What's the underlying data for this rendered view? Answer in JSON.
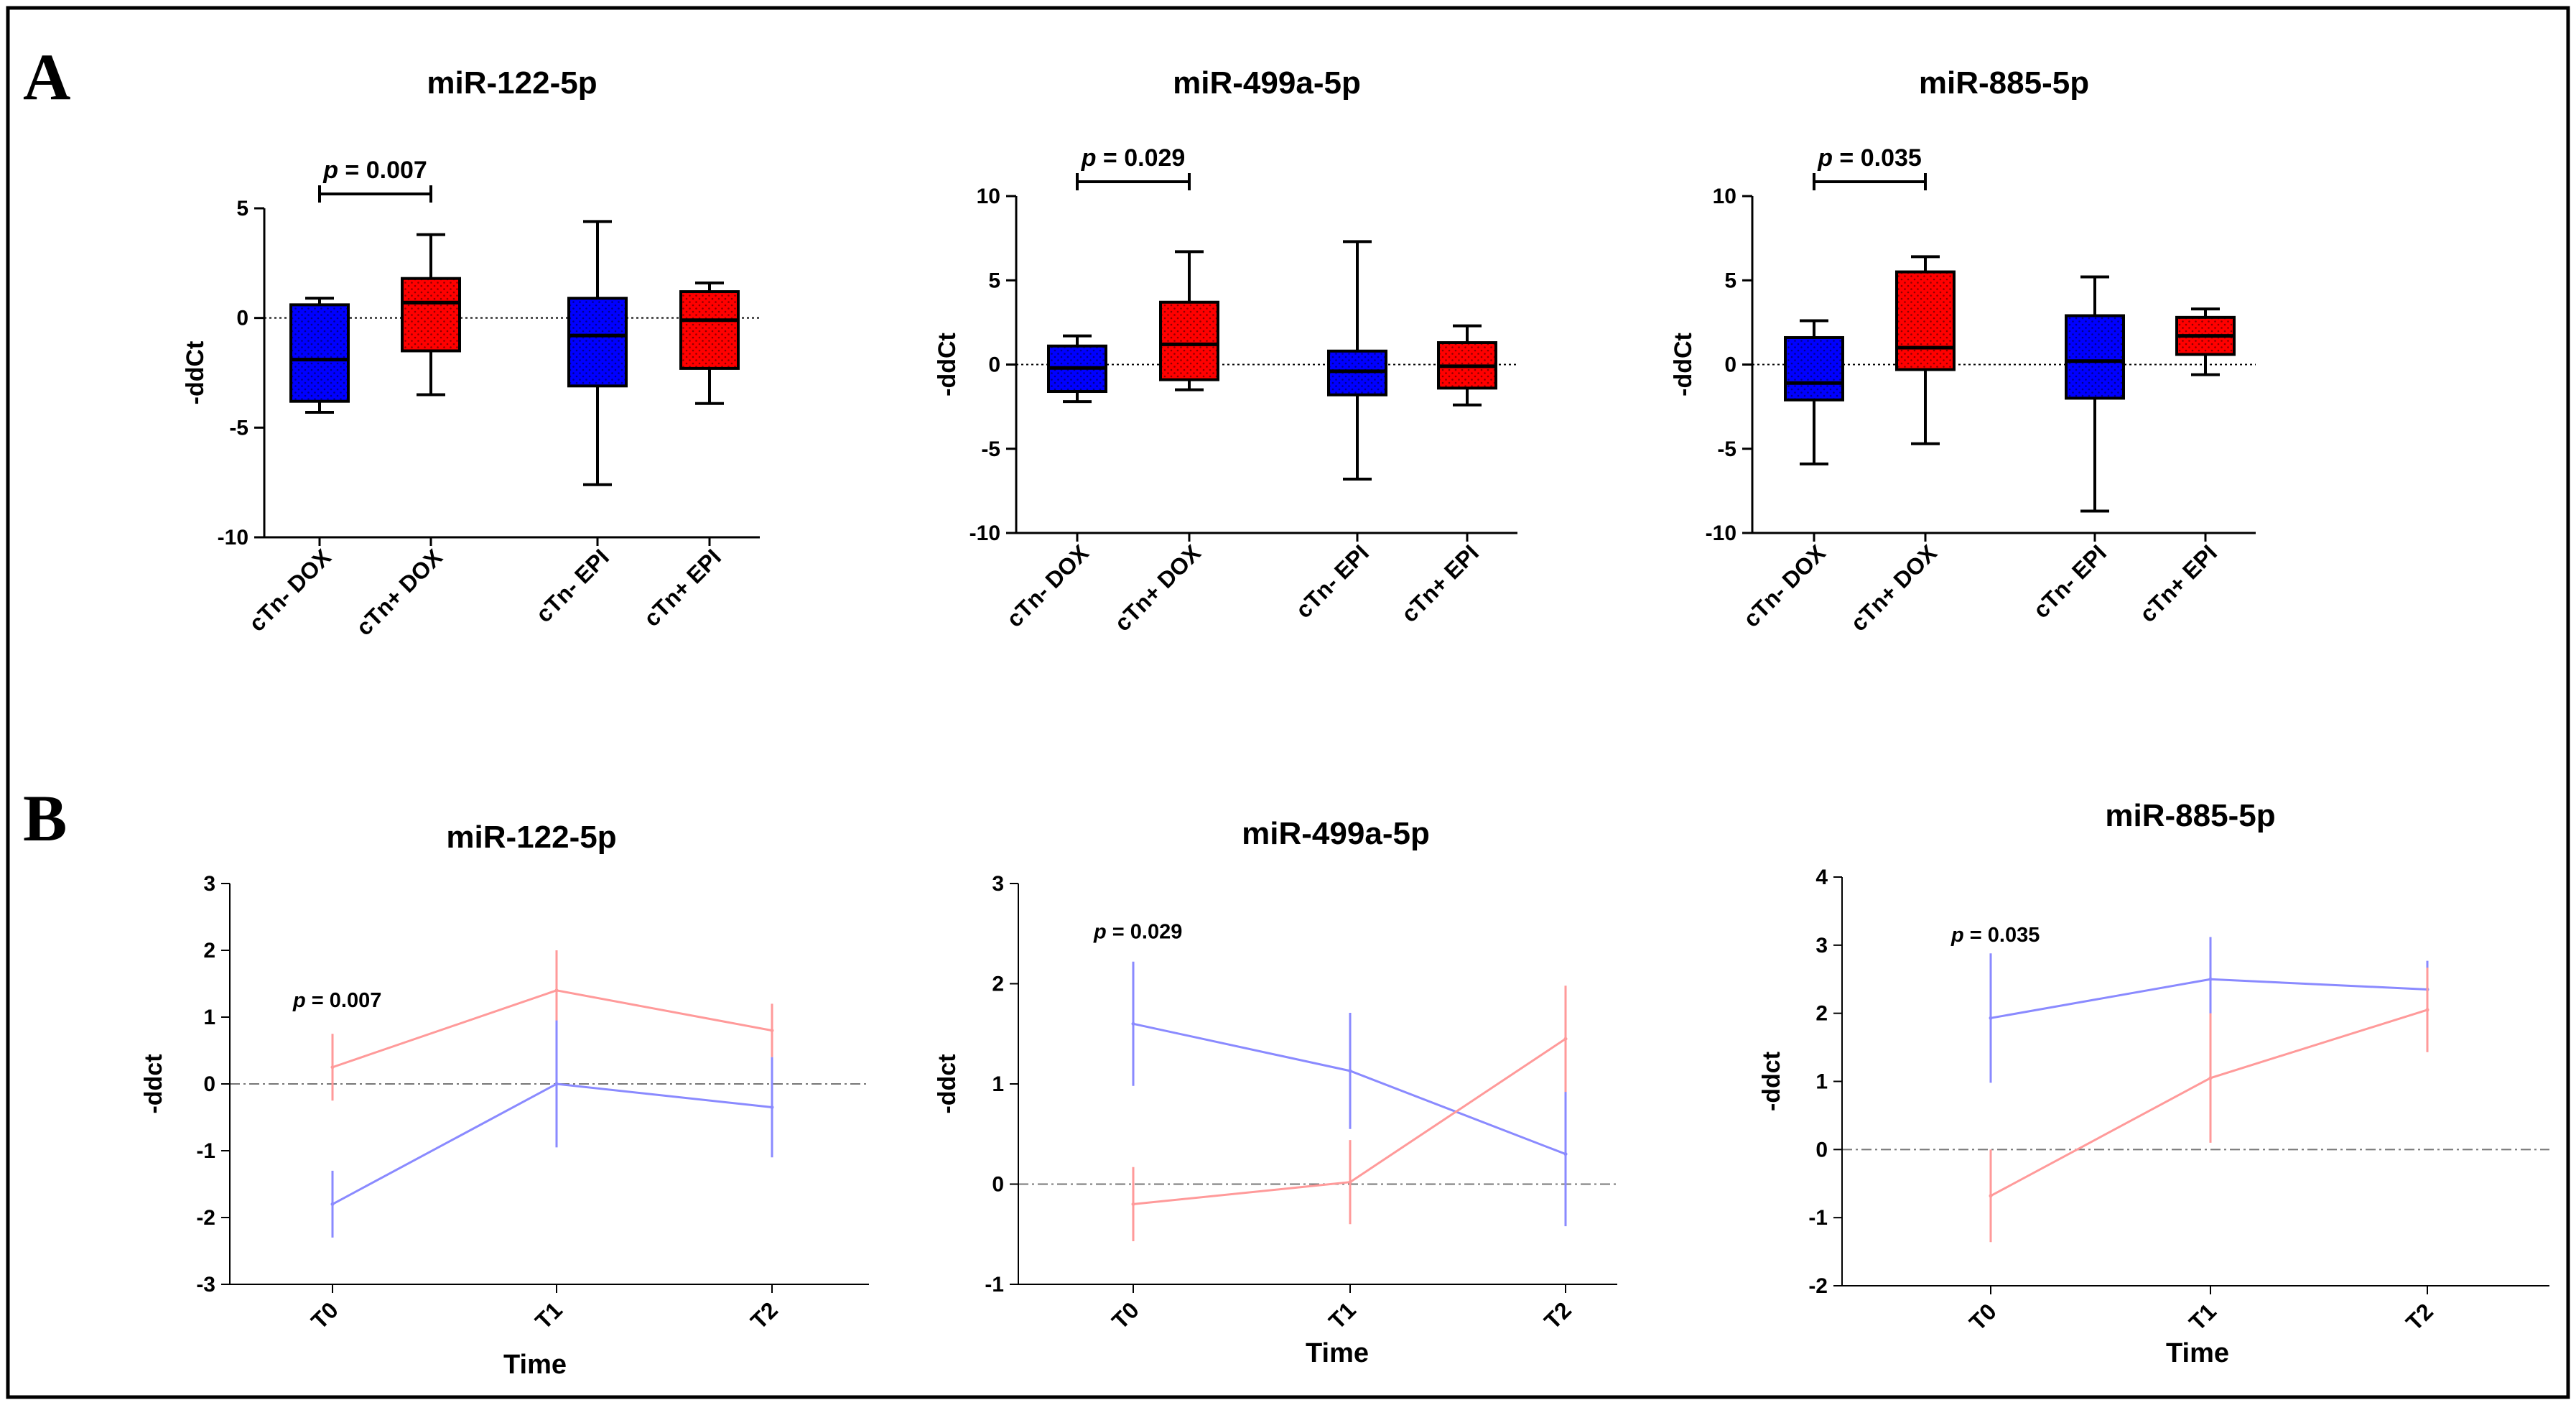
{
  "colors": {
    "blue": "#0000ff",
    "red": "#ff0000",
    "line_blue": "#8a8aff",
    "line_red": "#ff9a9a",
    "axis": "#000000",
    "zero_line": "#777777"
  },
  "panels": {
    "A": "A",
    "B": "B"
  },
  "chart_data": [
    {
      "type": "box",
      "panel": "A",
      "title": "miR-122-5p",
      "ylabel": "-ddCt",
      "ylim": [
        -10,
        5
      ],
      "yticks": [
        5,
        0,
        -5,
        -10
      ],
      "categories": [
        "cTn- DOX",
        "cTn+ DOX",
        "cTn- EPI",
        "cTn+ EPI"
      ],
      "boxes": [
        {
          "min": -4.3,
          "q1": -3.8,
          "median": -1.9,
          "q3": 0.6,
          "max": 0.9,
          "color": "blue"
        },
        {
          "min": -3.5,
          "q1": -1.5,
          "median": 0.7,
          "q3": 1.8,
          "max": 3.8,
          "color": "red"
        },
        {
          "min": -7.6,
          "q1": -3.1,
          "median": -0.8,
          "q3": 0.9,
          "max": 4.4,
          "color": "blue"
        },
        {
          "min": -3.9,
          "q1": -2.3,
          "median": -0.1,
          "q3": 1.2,
          "max": 1.6,
          "color": "red"
        }
      ],
      "significance": {
        "between": [
          "cTn- DOX",
          "cTn+ DOX"
        ],
        "p_prefix": "p",
        "p_value": "= 0.007"
      }
    },
    {
      "type": "box",
      "panel": "A",
      "title": "miR-499a-5p",
      "ylabel": "-ddCt",
      "ylim": [
        -10,
        10
      ],
      "yticks": [
        10,
        5,
        0,
        -5,
        -10
      ],
      "categories": [
        "cTn- DOX",
        "cTn+ DOX",
        "cTn- EPI",
        "cTn+ EPI"
      ],
      "boxes": [
        {
          "min": -2.2,
          "q1": -1.6,
          "median": -0.2,
          "q3": 1.1,
          "max": 1.7,
          "color": "blue"
        },
        {
          "min": -1.5,
          "q1": -0.9,
          "median": 1.2,
          "q3": 3.7,
          "max": 6.7,
          "color": "red"
        },
        {
          "min": -6.8,
          "q1": -1.8,
          "median": -0.4,
          "q3": 0.8,
          "max": 7.3,
          "color": "blue"
        },
        {
          "min": -2.4,
          "q1": -1.4,
          "median": -0.1,
          "q3": 1.3,
          "max": 2.3,
          "color": "red"
        }
      ],
      "significance": {
        "between": [
          "cTn- DOX",
          "cTn+ DOX"
        ],
        "p_prefix": "p",
        "p_value": "= 0.029"
      }
    },
    {
      "type": "box",
      "panel": "A",
      "title": "miR-885-5p",
      "ylabel": "-ddCt",
      "ylim": [
        -10,
        10
      ],
      "yticks": [
        10,
        5,
        0,
        -5,
        -10
      ],
      "categories": [
        "cTn- DOX",
        "cTn+ DOX",
        "cTn- EPI",
        "cTn+ EPI"
      ],
      "boxes": [
        {
          "min": -5.9,
          "q1": -2.1,
          "median": -1.1,
          "q3": 1.6,
          "max": 2.6,
          "color": "blue"
        },
        {
          "min": -4.7,
          "q1": -0.3,
          "median": 1.0,
          "q3": 5.5,
          "max": 6.4,
          "color": "red"
        },
        {
          "min": -8.7,
          "q1": -2.0,
          "median": 0.2,
          "q3": 2.9,
          "max": 5.2,
          "color": "blue"
        },
        {
          "min": -0.6,
          "q1": 0.6,
          "median": 1.7,
          "q3": 2.8,
          "max": 3.3,
          "color": "red"
        }
      ],
      "significance": {
        "between": [
          "cTn- DOX",
          "cTn+ DOX"
        ],
        "p_prefix": "p",
        "p_value": "= 0.035"
      }
    },
    {
      "type": "line",
      "panel": "B",
      "title": "miR-122-5p",
      "xlabel": "Time",
      "ylabel": "-ddct",
      "x": [
        "T0",
        "T1",
        "T2"
      ],
      "ylim": [
        -3,
        3
      ],
      "yticks": [
        3,
        2,
        1,
        0,
        -1,
        -2,
        -3
      ],
      "series": [
        {
          "name": "red",
          "color": "line_red",
          "values": [
            0.25,
            1.4,
            0.8
          ],
          "err": [
            0.5,
            0.6,
            0.4
          ]
        },
        {
          "name": "blue",
          "color": "line_blue",
          "values": [
            -1.8,
            0.0,
            -0.35
          ],
          "err": [
            0.5,
            0.95,
            0.75
          ]
        }
      ],
      "annotation": {
        "p_prefix": "p",
        "p_value": "= 0.007",
        "x": "T0",
        "y": 1.15
      }
    },
    {
      "type": "line",
      "panel": "B",
      "title": "miR-499a-5p",
      "xlabel": "Time",
      "ylabel": "-ddct",
      "x": [
        "T0",
        "T1",
        "T2"
      ],
      "ylim": [
        -1,
        3
      ],
      "yticks": [
        3,
        2,
        1,
        0,
        -1
      ],
      "series": [
        {
          "name": "blue",
          "color": "line_blue",
          "values": [
            1.6,
            1.13,
            0.3
          ],
          "err": [
            0.62,
            0.58,
            0.72
          ]
        },
        {
          "name": "red",
          "color": "line_red",
          "values": [
            -0.2,
            0.02,
            1.45
          ],
          "err": [
            0.37,
            0.42,
            0.53
          ]
        }
      ],
      "annotation": {
        "p_prefix": "p",
        "p_value": "= 0.029",
        "x": "T0",
        "y": 2.45
      }
    },
    {
      "type": "line",
      "panel": "B",
      "title": "miR-885-5p",
      "xlabel": "Time",
      "ylabel": "-ddct",
      "x": [
        "T0",
        "T1",
        "T2"
      ],
      "ylim": [
        -2,
        4
      ],
      "yticks": [
        4,
        3,
        2,
        1,
        0,
        -1,
        -2
      ],
      "series": [
        {
          "name": "blue",
          "color": "line_blue",
          "values": [
            1.93,
            2.5,
            2.35
          ],
          "err": [
            0.95,
            0.62,
            0.42
          ]
        },
        {
          "name": "red",
          "color": "line_red",
          "values": [
            -0.68,
            1.05,
            2.05
          ],
          "err": [
            0.68,
            0.95,
            0.62
          ]
        }
      ],
      "annotation": {
        "p_prefix": "p",
        "p_value": "= 0.035",
        "x": "T0",
        "y": 3.05
      }
    }
  ]
}
